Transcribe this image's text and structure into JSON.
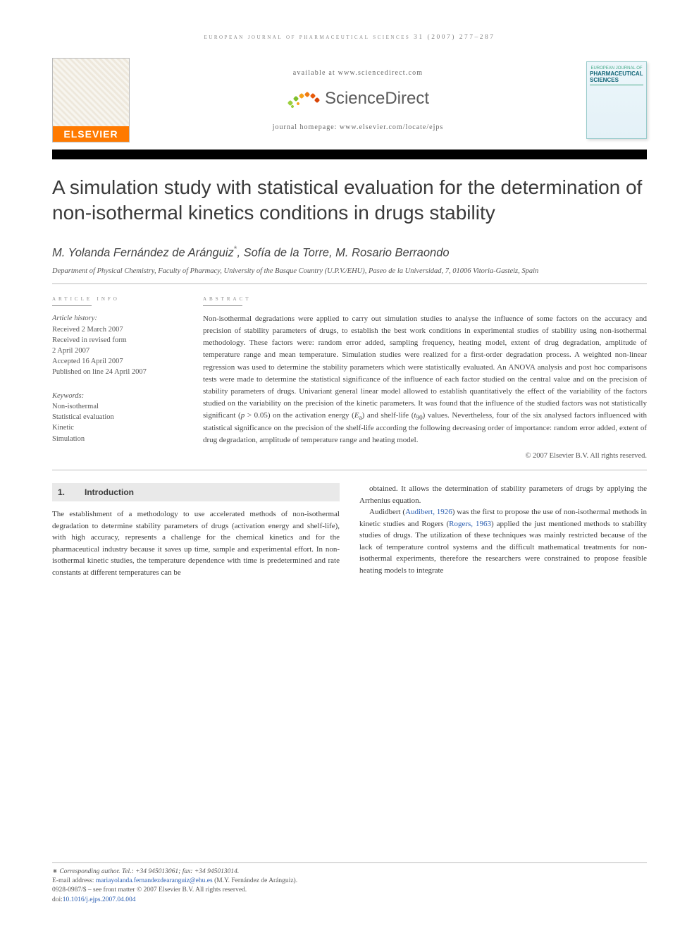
{
  "running_head": "european journal of pharmaceutical sciences 31 (2007) 277–287",
  "header": {
    "elsevier_wordmark": "ELSEVIER",
    "available_at": "available at www.sciencedirect.com",
    "sd_word": "ScienceDirect",
    "sd_colors": [
      "#9bcf3c",
      "#7fbf2a",
      "#f6a21a",
      "#ef7c12",
      "#e85a0a",
      "#d84406"
    ],
    "journal_homepage": "journal homepage: www.elsevier.com/locate/ejps",
    "cover": {
      "line1": "EUROPEAN JOURNAL OF",
      "line2": "PHARMACEUTICAL SCIENCES"
    }
  },
  "title": "A simulation study with statistical evaluation for the determination of non-isothermal kinetics conditions in drugs stability",
  "authors_html": "M. Yolanda Fernández de Aránguiz<span class='ast'>*</span>, Sofía de la Torre, M. Rosario Berraondo",
  "affiliation": "Department of Physical Chemistry, Faculty of Pharmacy, University of the Basque Country (U.P.V./EHU), Paseo de la Universidad, 7, 01006 Vitoria-Gasteiz, Spain",
  "article_info": {
    "label": "article info",
    "history_hd": "Article history:",
    "history": [
      "Received 2 March 2007",
      "Received in revised form",
      "2 April 2007",
      "Accepted 16 April 2007",
      "Published on line 24 April 2007"
    ],
    "keywords_hd": "Keywords:",
    "keywords": [
      "Non-isothermal",
      "Statistical evaluation",
      "Kinetic",
      "Simulation"
    ]
  },
  "abstract": {
    "label": "abstract",
    "text": "Non-isothermal degradations were applied to carry out simulation studies to analyse the influence of some factors on the accuracy and precision of stability parameters of drugs, to establish the best work conditions in experimental studies of stability using non-isothermal methodology. These factors were: random error added, sampling frequency, heating model, extent of drug degradation, amplitude of temperature range and mean temperature. Simulation studies were realized for a first-order degradation process. A weighted non-linear regression was used to determine the stability parameters which were statistically evaluated. An ANOVA analysis and post hoc comparisons tests were made to determine the statistical significance of the influence of each factor studied on the central value and on the precision of stability parameters of drugs. Univariant general linear model allowed to establish quantitatively the effect of the variability of the factors studied on the variability on the precision of the kinetic parameters. It was found that the influence of the studied factors was not statistically significant (p > 0.05) on the activation energy (Ea) and shelf-life (t90) values. Nevertheless, four of the six analysed factors influenced with statistical significance on the precision of the shelf-life according the following decreasing order of importance: random error added, extent of drug degradation, amplitude of temperature range and heating model.",
    "copyright": "© 2007 Elsevier B.V. All rights reserved."
  },
  "section": {
    "num": "1.",
    "title": "Introduction"
  },
  "body": {
    "p1": "The establishment of a methodology to use accelerated methods of non-isothermal degradation to determine stability parameters of drugs (activation energy and shelf-life), with high accuracy, represents a challenge for the chemical kinetics and for the pharmaceutical industry because it saves up time, sample and experimental effort. In non-isothermal kinetic studies, the temperature dependence with time is predetermined and rate constants at different temperatures can be",
    "p2": "obtained. It allows the determination of stability parameters of drugs by applying the Arrhenius equation.",
    "p3a": "Audidbert (",
    "cite1": "Audibert, 1926",
    "p3b": ") was the first to propose the use of non-isothermal methods in kinetic studies and Rogers (",
    "cite2": "Rogers, 1963",
    "p3c": ") applied the just mentioned methods to stability studies of drugs. The utilization of these techniques was mainly restricted because of the lack of temperature control systems and the difficult mathematical treatments for non-isothermal experiments, therefore the researchers were constrained to propose feasible heating models to integrate"
  },
  "footer": {
    "corr": "Corresponding author. Tel.: +34 945013061; fax: +34 945013014.",
    "email_label": "E-mail address: ",
    "email": "mariayolanda.fernandezdearanguiz@ehu.es",
    "email_tail": " (M.Y. Fernández de Aránguiz).",
    "issn": "0928-0987/$ – see front matter © 2007 Elsevier B.V. All rights reserved.",
    "doi_label": "doi:",
    "doi": "10.1016/j.ejps.2007.04.004"
  },
  "colors": {
    "text": "#3a3a3a",
    "muted": "#888888",
    "rule": "#bbbbbb",
    "link": "#2a5db0",
    "elsevier_orange": "#ff7a00",
    "section_bg": "#e9e9e9"
  }
}
